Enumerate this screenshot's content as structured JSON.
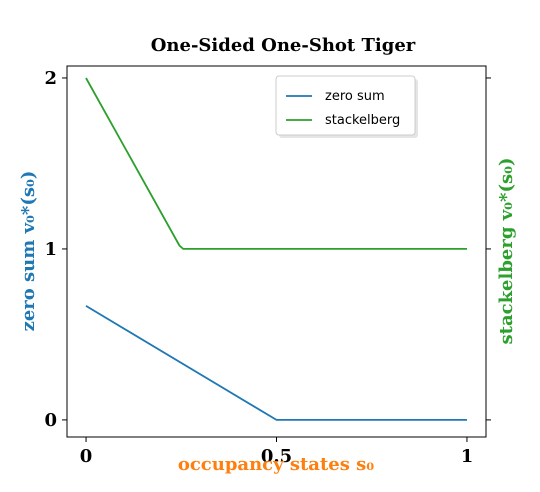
{
  "chart_data": {
    "type": "line",
    "title": "One-Sided One-Shot Tiger",
    "xlabel": "occupancy states s₀",
    "ylabel_left": "zero sum v₀*(s₀)",
    "ylabel_right": "stackelberg v₀*(s₀)",
    "xlim": [
      -0.05,
      1.05
    ],
    "ylim": [
      -0.1,
      2.07
    ],
    "x_ticks": [
      {
        "value": 0,
        "label": "0"
      },
      {
        "value": 0.5,
        "label": "0.5"
      },
      {
        "value": 1,
        "label": "1"
      }
    ],
    "y_ticks": [
      {
        "value": 0,
        "label": "0"
      },
      {
        "value": 1,
        "label": "1"
      },
      {
        "value": 2,
        "label": "2"
      }
    ],
    "grid": false,
    "legend_position": "top-right",
    "series": [
      {
        "name": "zero sum",
        "color": "#1f77b4",
        "x": [
          0,
          0.5,
          1
        ],
        "y": [
          0.667,
          0,
          0
        ]
      },
      {
        "name": "stackelberg",
        "color": "#2ca02c",
        "x": [
          0,
          0.245,
          0.255,
          1
        ],
        "y": [
          2,
          1.02,
          1,
          1
        ]
      }
    ],
    "colors": {
      "xlabel": "#ff7f0e",
      "ylabel_left": "#1f77b4",
      "ylabel_right": "#2ca02c"
    }
  }
}
